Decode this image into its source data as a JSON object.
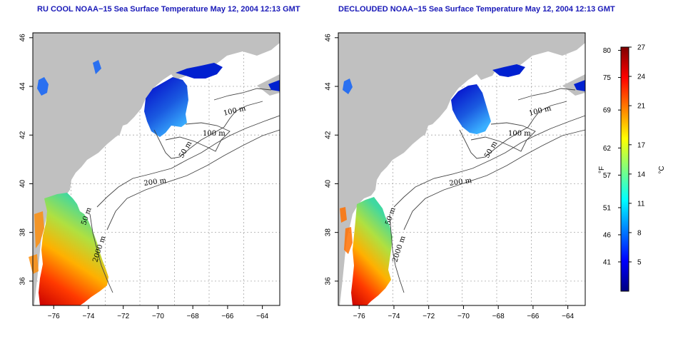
{
  "panels": [
    {
      "id": "left",
      "title": "RU COOL NOAA−15 Sea Surface Temperature May 12, 2004 12:13 GMT",
      "contours": [
        "100 m",
        "100 m",
        "50 m",
        "200 m",
        "50 m",
        "2000 m"
      ]
    },
    {
      "id": "right",
      "title": "DECLOUDED NOAA−15 Sea Surface Temperature May 12, 2004 12:13 GMT",
      "contours": [
        "100 m",
        "100 m",
        "50 m",
        "200 m",
        "50 m",
        "2000 m"
      ]
    }
  ],
  "axes": {
    "lon_ticks": [
      "−76",
      "−74",
      "−72",
      "−70",
      "−68",
      "−66",
      "−64"
    ],
    "lat_ticks": [
      "36",
      "38",
      "40",
      "42",
      "44",
      "46"
    ],
    "lon_range": [
      -77.2,
      -63.0
    ],
    "lat_range": [
      35.0,
      46.2
    ]
  },
  "colorbar": {
    "fahrenheit_label": "°F",
    "celsius_label": "°C",
    "fahrenheit_ticks": [
      "80",
      "75",
      "69",
      "62",
      "57",
      "51",
      "46",
      "41"
    ],
    "celsius_ticks": [
      "27",
      "24",
      "21",
      "17",
      "14",
      "11",
      "8",
      "5"
    ],
    "colors": [
      "#00007f",
      "#0000ff",
      "#007fff",
      "#00ffff",
      "#7fff7f",
      "#ffff00",
      "#ff7f00",
      "#ff0000",
      "#7f0000"
    ]
  },
  "colors": {
    "land": "#c0c0c0",
    "ocean": "#ffffff",
    "title": "#1a1ab8"
  }
}
